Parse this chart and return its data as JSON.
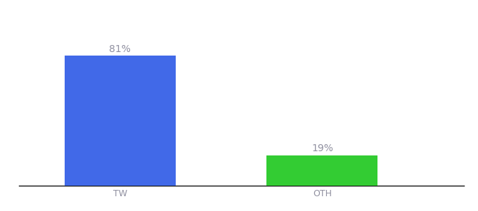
{
  "categories": [
    "TW",
    "OTH"
  ],
  "values": [
    81,
    19
  ],
  "bar_colors": [
    "#4169e8",
    "#33cc33"
  ],
  "label_texts": [
    "81%",
    "19%"
  ],
  "background_color": "#ffffff",
  "text_color": "#9090a0",
  "axis_line_color": "#111111",
  "ylim": [
    0,
    105
  ],
  "x_positions": [
    1,
    2
  ],
  "bar_width": 0.55,
  "label_fontsize": 10,
  "tick_fontsize": 9,
  "figsize": [
    6.8,
    3.0
  ],
  "dpi": 100
}
